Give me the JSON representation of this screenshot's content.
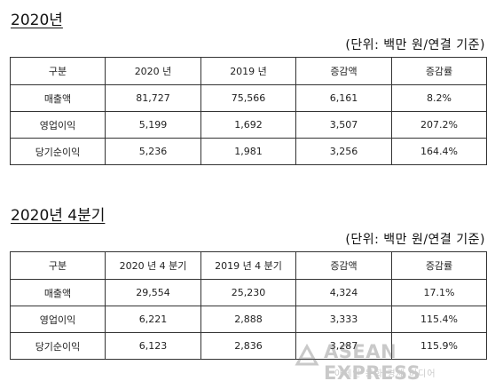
{
  "section1": {
    "heading": "2020년",
    "unit": "(단위: 백만 원/연결 기준)",
    "columns": [
      "구분",
      "2020 년",
      "2019 년",
      "증감액",
      "증감률"
    ],
    "rows": [
      [
        "매출액",
        "81,727",
        "75,566",
        "6,161",
        "8.2%"
      ],
      [
        "영업이익",
        "5,199",
        "1,692",
        "3,507",
        "207.2%"
      ],
      [
        "당기순이익",
        "5,236",
        "1,981",
        "3,256",
        "164.4%"
      ]
    ]
  },
  "section2": {
    "heading": "2020년 4분기",
    "unit": "(단위: 백만 원/연결 기준)",
    "columns": [
      "구분",
      "2020 년 4 분기",
      "2019 년 4 분기",
      "증감액",
      "증감률"
    ],
    "rows": [
      [
        "매출액",
        "29,554",
        "25,230",
        "4,324",
        "17.1%"
      ],
      [
        "영업이익",
        "6,221",
        "2,888",
        "3,333",
        "115.4%"
      ],
      [
        "당기순이익",
        "6,123",
        "2,836",
        "3,287",
        "115.9%"
      ]
    ]
  },
  "watermark": {
    "brand": "ASEAN EXPRESS",
    "subtitle": "아세안 문화 경제 미디어"
  }
}
